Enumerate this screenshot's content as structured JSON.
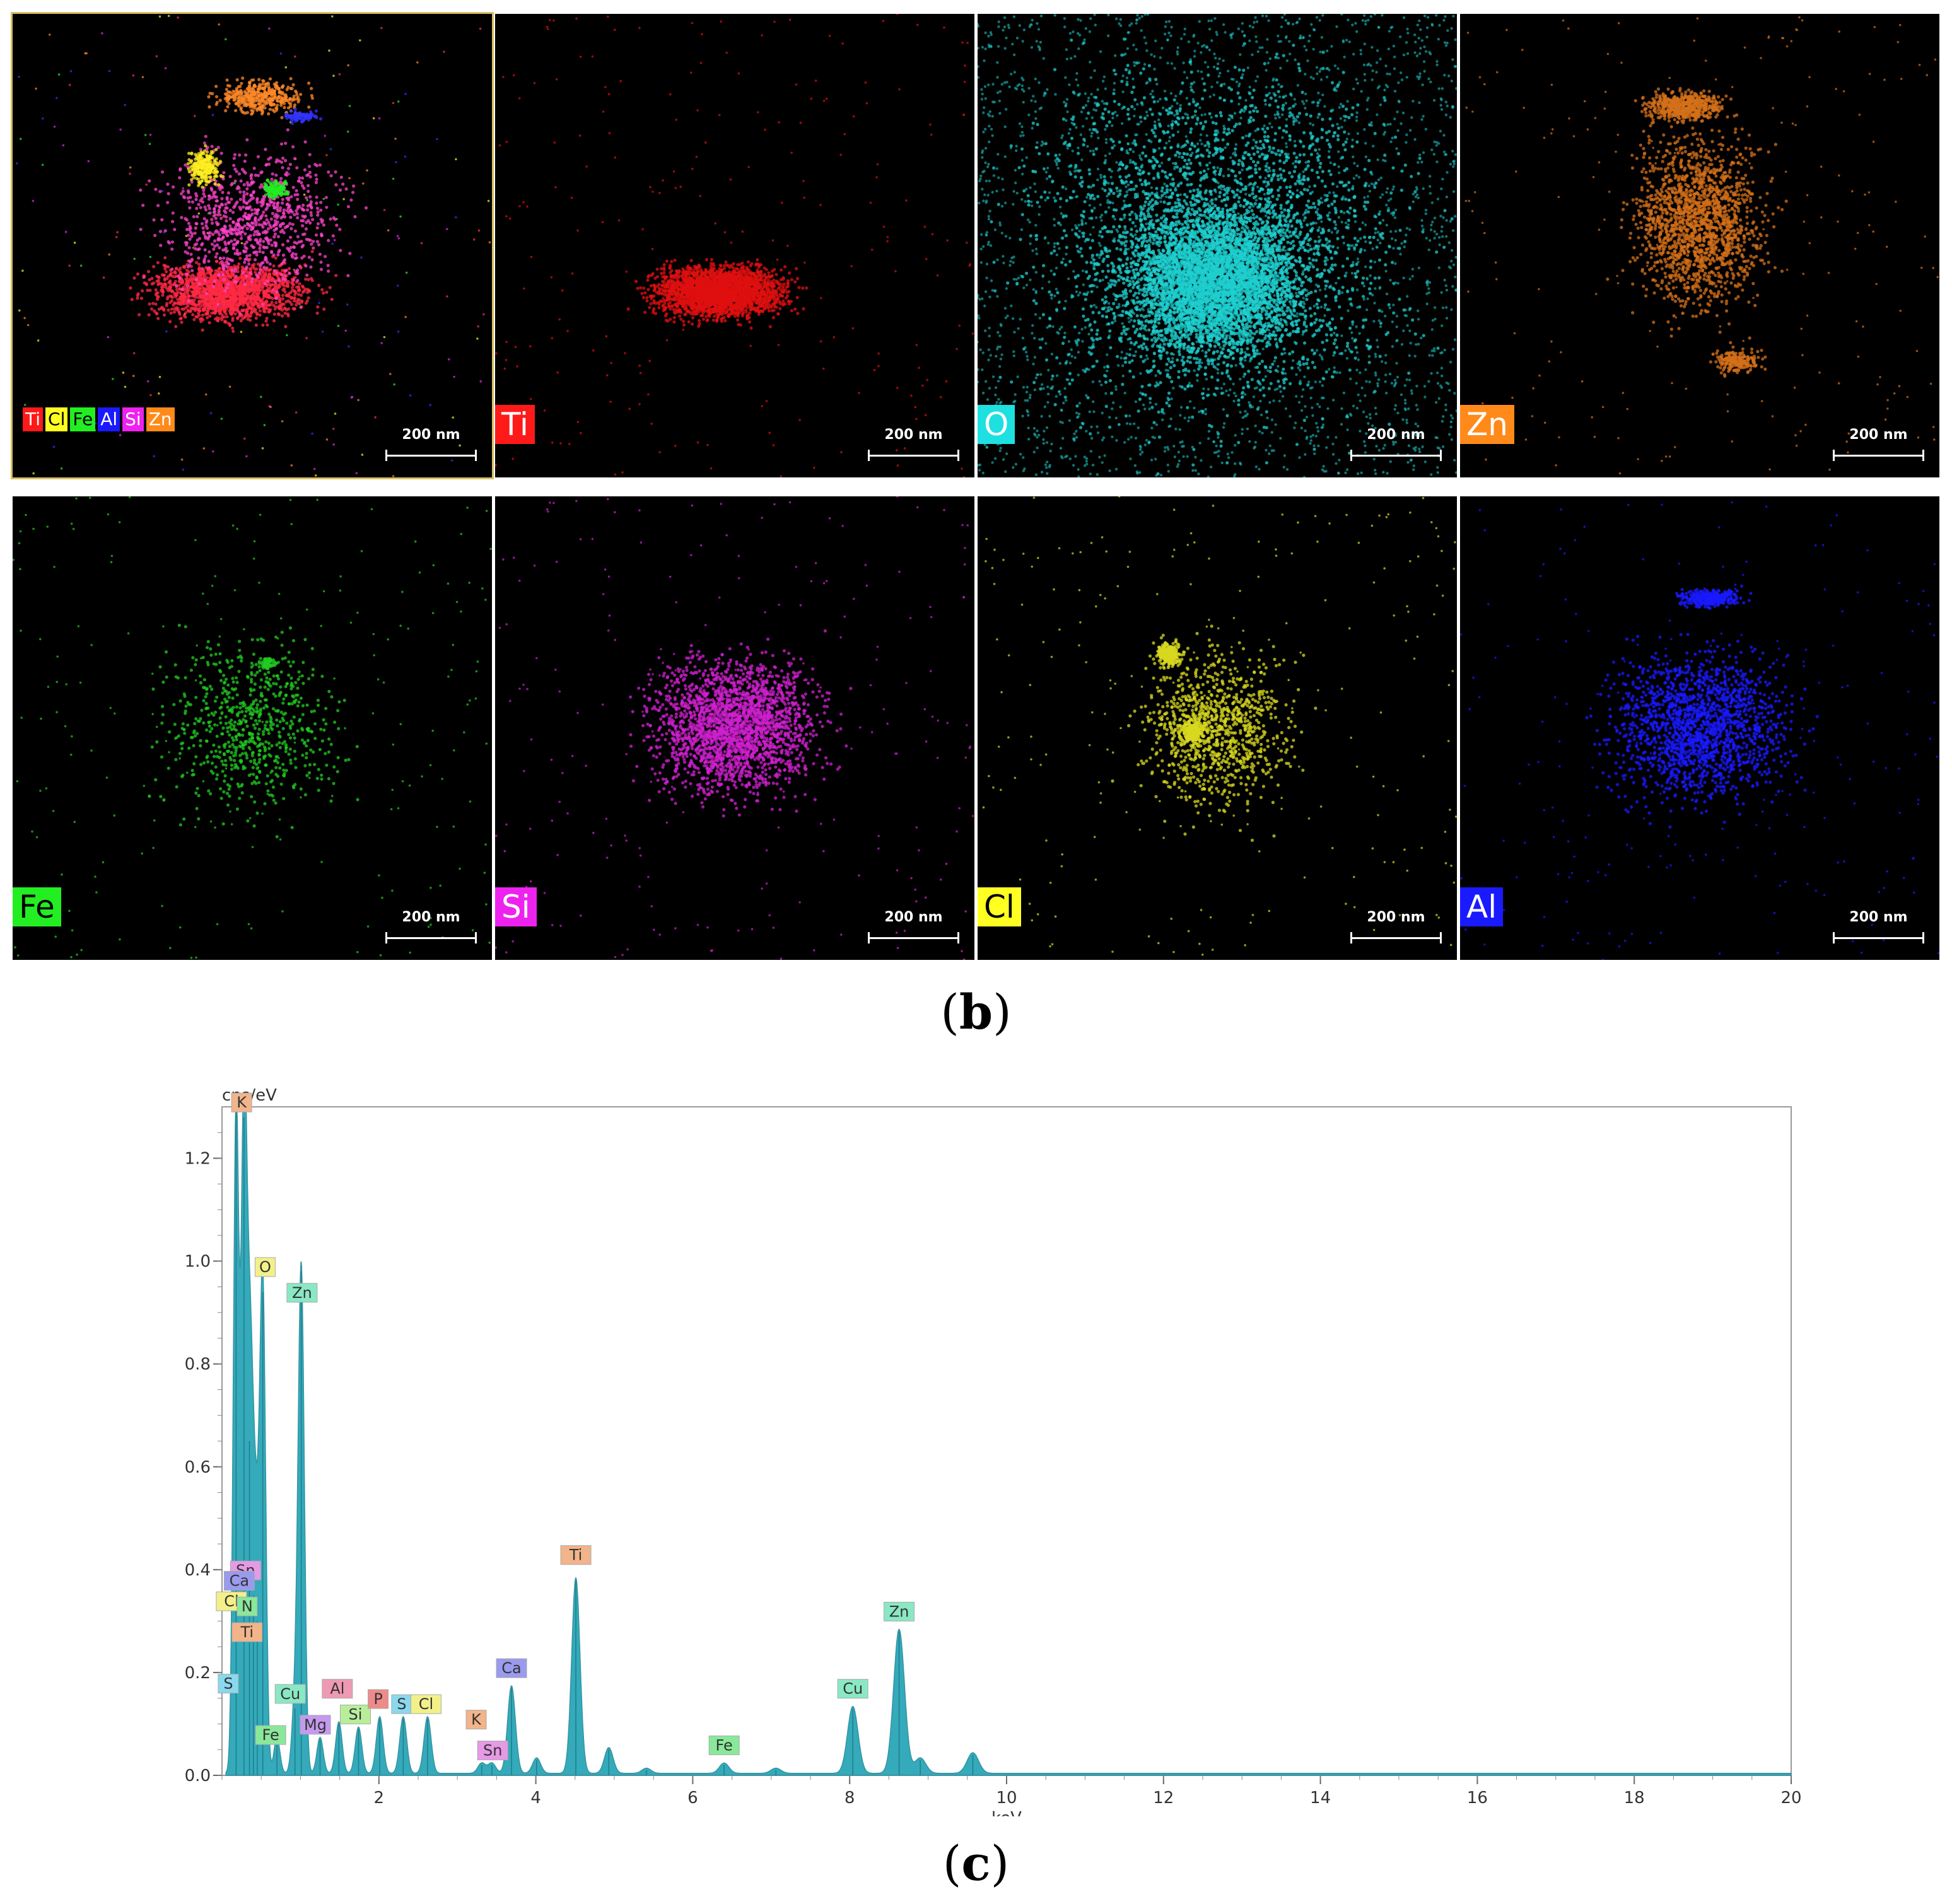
{
  "maps": [
    {
      "id": "overlay",
      "label": "",
      "dot": "#ff6633"
    },
    {
      "id": "ti",
      "label": "Ti",
      "bg": "#ff1a1a",
      "fg": "#ffffff",
      "dot": "#e01010"
    },
    {
      "id": "o",
      "label": "O",
      "bg": "#1fe0e0",
      "fg": "#ffffff",
      "dot": "#1fcfcf"
    },
    {
      "id": "zn",
      "label": "Zn",
      "bg": "#ff8a1a",
      "fg": "#ffffff",
      "dot": "#d4701a"
    },
    {
      "id": "fe",
      "label": "Fe",
      "bg": "#22ee22",
      "fg": "#000000",
      "dot": "#22cc22"
    },
    {
      "id": "si",
      "label": "Si",
      "bg": "#ee22ee",
      "fg": "#ffffff",
      "dot": "#d020d0"
    },
    {
      "id": "cl",
      "label": "Cl",
      "bg": "#ffff22",
      "fg": "#000000",
      "dot": "#d8d820"
    },
    {
      "id": "al",
      "label": "Al",
      "bg": "#1a1aff",
      "fg": "#ffffff",
      "dot": "#1a1aff"
    }
  ],
  "overlay_legend": [
    {
      "text": "Ti",
      "color": "#ff1a1a"
    },
    {
      "text": "Cl",
      "color": "#ffff22"
    },
    {
      "text": "Fe",
      "color": "#22ee22"
    },
    {
      "text": "Al",
      "color": "#1a1aff"
    },
    {
      "text": "Si",
      "color": "#ee22ee"
    },
    {
      "text": "Zn",
      "color": "#ff8a1a"
    }
  ],
  "scale_label": "200 nm",
  "caption_b": "b",
  "caption_c": "c",
  "chart_data": {
    "type": "line",
    "title": "",
    "xlabel": "keV",
    "ylabel": "cps/eV",
    "xlim": [
      0,
      20
    ],
    "ylim": [
      0,
      1.3
    ],
    "x_ticks": [
      2,
      4,
      6,
      8,
      10,
      12,
      14,
      16,
      18,
      20
    ],
    "y_ticks": [
      0.0,
      0.2,
      0.4,
      0.6,
      0.8,
      1.0,
      1.2
    ],
    "y_tick_labels": [
      "0.0",
      "0.2",
      "0.4",
      "0.6",
      "0.8",
      "1.0",
      "1.2"
    ],
    "colors": {
      "fill": "#2aa6b8",
      "stroke": "#2b8f9c"
    },
    "peaks": [
      {
        "x": 0.18,
        "y": 1.3
      },
      {
        "x": 0.28,
        "y": 1.28
      },
      {
        "x": 0.35,
        "y": 0.65
      },
      {
        "x": 0.4,
        "y": 0.35
      },
      {
        "x": 0.45,
        "y": 0.3
      },
      {
        "x": 0.52,
        "y": 0.94
      },
      {
        "x": 0.7,
        "y": 0.07
      },
      {
        "x": 0.93,
        "y": 0.13
      },
      {
        "x": 1.01,
        "y": 0.98
      },
      {
        "x": 1.25,
        "y": 0.07
      },
      {
        "x": 1.49,
        "y": 0.1
      },
      {
        "x": 1.74,
        "y": 0.09
      },
      {
        "x": 2.01,
        "y": 0.11
      },
      {
        "x": 2.31,
        "y": 0.11
      },
      {
        "x": 2.62,
        "y": 0.11
      },
      {
        "x": 3.31,
        "y": 0.02
      },
      {
        "x": 3.44,
        "y": 0.02
      },
      {
        "x": 3.69,
        "y": 0.17
      },
      {
        "x": 4.01,
        "y": 0.03
      },
      {
        "x": 4.51,
        "y": 0.38
      },
      {
        "x": 4.93,
        "y": 0.05
      },
      {
        "x": 5.41,
        "y": 0.01
      },
      {
        "x": 6.4,
        "y": 0.02
      },
      {
        "x": 7.06,
        "y": 0.01
      },
      {
        "x": 8.04,
        "y": 0.13
      },
      {
        "x": 8.63,
        "y": 0.28
      },
      {
        "x": 8.9,
        "y": 0.03
      },
      {
        "x": 9.57,
        "y": 0.04
      }
    ],
    "peak_labels": [
      {
        "text": "K",
        "x": 0.25,
        "y": 1.29,
        "color": "#f2b48a"
      },
      {
        "text": "O",
        "x": 0.55,
        "y": 0.97,
        "color": "#f3f08a"
      },
      {
        "text": "Zn",
        "x": 1.02,
        "y": 0.92,
        "color": "#8ae8c4"
      },
      {
        "text": "Sn",
        "x": 0.3,
        "y": 0.38,
        "color": "#e69ae6"
      },
      {
        "text": "Ca",
        "x": 0.22,
        "y": 0.36,
        "color": "#9a9aee"
      },
      {
        "text": "Cl",
        "x": 0.12,
        "y": 0.32,
        "color": "#f3f08a"
      },
      {
        "text": "N",
        "x": 0.32,
        "y": 0.31,
        "color": "#8ae89a"
      },
      {
        "text": "Ti",
        "x": 0.32,
        "y": 0.26,
        "color": "#f2b48a"
      },
      {
        "text": "S",
        "x": 0.08,
        "y": 0.16,
        "color": "#8ad8ee"
      },
      {
        "text": "Cu",
        "x": 0.87,
        "y": 0.14,
        "color": "#8ae8c4"
      },
      {
        "text": "Fe",
        "x": 0.62,
        "y": 0.06,
        "color": "#8ae89a"
      },
      {
        "text": "Al",
        "x": 1.47,
        "y": 0.15,
        "color": "#ee9ab4"
      },
      {
        "text": "Mg",
        "x": 1.19,
        "y": 0.08,
        "color": "#c49aee"
      },
      {
        "text": "Si",
        "x": 1.7,
        "y": 0.1,
        "color": "#b8ee9a"
      },
      {
        "text": "P",
        "x": 1.99,
        "y": 0.13,
        "color": "#ee8a8a"
      },
      {
        "text": "S",
        "x": 2.29,
        "y": 0.12,
        "color": "#8ad8ee"
      },
      {
        "text": "Cl",
        "x": 2.6,
        "y": 0.12,
        "color": "#f3f08a"
      },
      {
        "text": "K",
        "x": 3.24,
        "y": 0.09,
        "color": "#f2b48a"
      },
      {
        "text": "Sn",
        "x": 3.45,
        "y": 0.03,
        "color": "#e69ae6"
      },
      {
        "text": "Ca",
        "x": 3.69,
        "y": 0.19,
        "color": "#9a9aee"
      },
      {
        "text": "Ti",
        "x": 4.51,
        "y": 0.41,
        "color": "#f2b48a"
      },
      {
        "text": "Fe",
        "x": 6.4,
        "y": 0.04,
        "color": "#8ae89a"
      },
      {
        "text": "Cu",
        "x": 8.04,
        "y": 0.15,
        "color": "#8ae8c4"
      },
      {
        "text": "Zn",
        "x": 8.63,
        "y": 0.3,
        "color": "#8ae8c4"
      }
    ]
  }
}
